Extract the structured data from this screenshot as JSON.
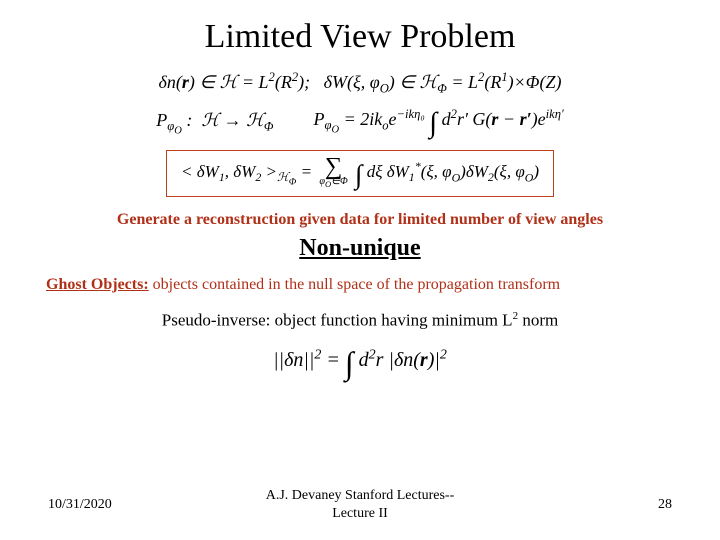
{
  "title": "Limited View Problem",
  "equation1": "δn(r) ∈ ℋ = L²(R²);  δW(ξ, φₒ) ∈ ℋ_Φ = L²(R¹)×Φ(Z)",
  "equation2a": "P_{φₒ} :  ℋ → ℋ_Φ",
  "equation2b": "P_{φₒ} = 2ikₒe^{−ikη₀} ∫ d²r′ G(r − r′) e^{ikη′}",
  "equation_boxed": "< δW₁, δW₂ >_{ℋ_Φ} =  Σ_{φₒ∈Φ} ∫ dξ δW₁*(ξ, φₒ) δW₂(ξ, φₒ)",
  "instruction": "Generate a reconstruction given data for limited number of view angles",
  "nonunique": "Non-unique",
  "ghost_label": "Ghost Objects:",
  "ghost_text": " objects contained in the null space of the propagation transform",
  "pseudo_text_a": "Pseudo-inverse: object function having minimum L",
  "pseudo_text_b": " norm",
  "equation3": "||δn||² = ∫ d²r |δn(r)|²",
  "footer": {
    "date": "10/31/2020",
    "center_line1": "A.J. Devaney Stanford Lectures--",
    "center_line2": "Lecture II",
    "page": "28"
  },
  "colors": {
    "accent": "#b03018",
    "box_border": "#c04020",
    "text": "#000000",
    "background": "#ffffff"
  }
}
